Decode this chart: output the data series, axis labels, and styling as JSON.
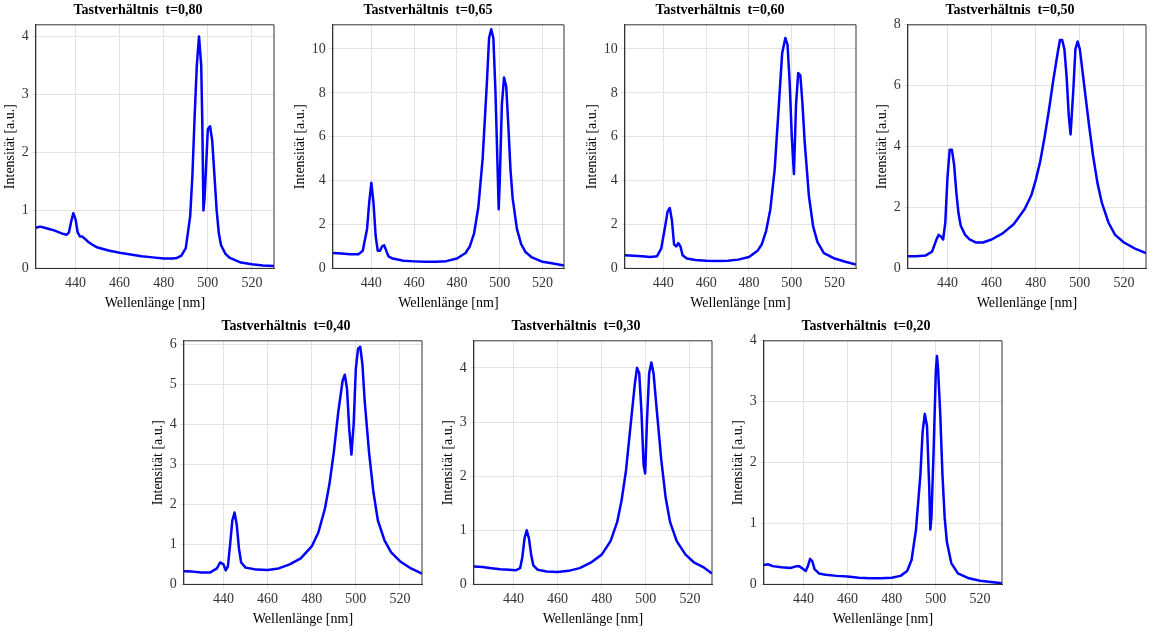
{
  "chart_data": [
    {
      "type": "line",
      "title": "Tastverhältnis  t=0,80",
      "xlabel": "Wellenlänge [nm]",
      "ylabel": "Intensität [a.u.]",
      "xlim": [
        422,
        530
      ],
      "xticks": [
        440,
        460,
        480,
        500,
        520
      ],
      "ylim": [
        0,
        4.2
      ],
      "yticks": [
        0,
        1,
        2,
        3,
        4
      ],
      "grid": true,
      "marker": "none",
      "series": [
        {
          "color": "#0000ff",
          "x": [
            422,
            424,
            426,
            428,
            430,
            432,
            434,
            436,
            437,
            438,
            439,
            440,
            441,
            442,
            443,
            444,
            446,
            448,
            450,
            455,
            460,
            465,
            470,
            475,
            480,
            484,
            486,
            488,
            490,
            492,
            493,
            494,
            495,
            496,
            497,
            497.5,
            498,
            498.5,
            499,
            500,
            501,
            502,
            503,
            504,
            505,
            506,
            508,
            510,
            515,
            520,
            525,
            530
          ],
          "values": [
            0.7,
            0.72,
            0.7,
            0.68,
            0.66,
            0.63,
            0.6,
            0.58,
            0.62,
            0.8,
            0.95,
            0.85,
            0.62,
            0.55,
            0.55,
            0.52,
            0.45,
            0.4,
            0.36,
            0.31,
            0.27,
            0.24,
            0.21,
            0.19,
            0.17,
            0.17,
            0.18,
            0.22,
            0.35,
            0.9,
            1.6,
            2.6,
            3.5,
            4.0,
            3.5,
            2.5,
            1.0,
            1.2,
            1.6,
            2.4,
            2.45,
            2.2,
            1.6,
            1.0,
            0.6,
            0.4,
            0.25,
            0.18,
            0.1,
            0.07,
            0.05,
            0.04
          ]
        }
      ]
    },
    {
      "type": "line",
      "title": "Tastverhältnis  t=0,65",
      "xlabel": "Wellenlänge [nm]",
      "ylabel": "Intensität [a.u.]",
      "xlim": [
        422,
        530
      ],
      "xticks": [
        440,
        460,
        480,
        500,
        520
      ],
      "ylim": [
        0,
        11.1
      ],
      "yticks": [
        0,
        2,
        4,
        6,
        8,
        10
      ],
      "grid": true,
      "marker": "none",
      "series": [
        {
          "color": "#0000ff",
          "x": [
            422,
            426,
            430,
            434,
            436,
            438,
            439,
            440,
            441,
            442,
            443,
            444,
            445,
            446,
            447,
            448,
            450,
            455,
            460,
            465,
            470,
            475,
            480,
            484,
            486,
            488,
            490,
            492,
            494,
            495,
            496,
            497,
            498,
            499,
            499.5,
            500,
            501,
            502,
            503,
            504,
            505,
            506,
            508,
            510,
            512,
            515,
            520,
            525,
            530
          ],
          "values": [
            0.7,
            0.68,
            0.65,
            0.65,
            0.8,
            1.8,
            3.0,
            3.9,
            3.0,
            1.5,
            0.8,
            0.8,
            1.0,
            1.05,
            0.8,
            0.55,
            0.45,
            0.35,
            0.32,
            0.3,
            0.3,
            0.33,
            0.45,
            0.7,
            1.0,
            1.6,
            2.8,
            5.0,
            8.5,
            10.5,
            10.9,
            10.5,
            8.0,
            4.5,
            2.7,
            4.0,
            7.5,
            8.7,
            8.3,
            6.5,
            4.5,
            3.2,
            1.8,
            1.1,
            0.75,
            0.5,
            0.3,
            0.22,
            0.13
          ]
        }
      ]
    },
    {
      "type": "line",
      "title": "Tastverhältnis  t=0,60",
      "xlabel": "Wellenlänge [nm]",
      "ylabel": "Intensität [a.u.]",
      "xlim": [
        422,
        530
      ],
      "xticks": [
        440,
        460,
        480,
        500,
        520
      ],
      "ylim": [
        0,
        11.1
      ],
      "yticks": [
        0,
        2,
        4,
        6,
        8,
        10
      ],
      "grid": true,
      "marker": "none",
      "series": [
        {
          "color": "#0000ff",
          "x": [
            422,
            426,
            430,
            434,
            437,
            439,
            441,
            442,
            443,
            444,
            445,
            446,
            447,
            448,
            449,
            451,
            455,
            460,
            465,
            470,
            475,
            480,
            484,
            486,
            488,
            490,
            492,
            494,
            495.5,
            497,
            498,
            499,
            500,
            501,
            502,
            503,
            504,
            505,
            506,
            508,
            510,
            512,
            515,
            520,
            525,
            530
          ],
          "values": [
            0.6,
            0.58,
            0.55,
            0.52,
            0.55,
            0.9,
            2.0,
            2.6,
            2.75,
            2.2,
            1.1,
            1.0,
            1.15,
            1.0,
            0.6,
            0.45,
            0.38,
            0.35,
            0.34,
            0.35,
            0.4,
            0.52,
            0.8,
            1.1,
            1.7,
            2.7,
            4.5,
            7.5,
            9.8,
            10.5,
            10.2,
            8.5,
            6.0,
            4.3,
            7.5,
            8.9,
            8.8,
            7.5,
            5.8,
            3.3,
            1.9,
            1.2,
            0.7,
            0.45,
            0.3,
            0.18
          ]
        }
      ]
    },
    {
      "type": "line",
      "title": "Tastverhältnis  t=0,50",
      "xlabel": "Wellenlänge [nm]",
      "ylabel": "Intensität [a.u.]",
      "xlim": [
        422,
        530
      ],
      "xticks": [
        440,
        460,
        480,
        500,
        520
      ],
      "ylim": [
        0,
        8
      ],
      "yticks": [
        0,
        2,
        4,
        6,
        8
      ],
      "grid": true,
      "marker": "none",
      "series": [
        {
          "color": "#0000ff",
          "x": [
            422,
            426,
            430,
            433,
            435,
            436,
            437,
            438,
            439,
            440,
            441,
            442,
            443,
            444,
            445,
            446,
            448,
            450,
            453,
            456,
            460,
            465,
            470,
            475,
            478,
            480,
            482,
            484,
            486,
            488,
            490,
            491,
            492,
            493,
            494,
            495,
            495.8,
            497,
            498,
            499,
            500,
            502,
            504,
            506,
            508,
            510,
            513,
            516,
            520,
            525,
            530
          ],
          "values": [
            0.4,
            0.4,
            0.42,
            0.55,
            0.95,
            1.1,
            1.05,
            0.95,
            1.5,
            3.0,
            3.9,
            3.9,
            3.4,
            2.5,
            1.8,
            1.4,
            1.1,
            0.95,
            0.85,
            0.85,
            0.95,
            1.15,
            1.45,
            1.95,
            2.4,
            2.9,
            3.5,
            4.3,
            5.2,
            6.2,
            7.1,
            7.5,
            7.5,
            7.2,
            6.3,
            5.0,
            4.4,
            5.8,
            7.2,
            7.45,
            7.2,
            6.0,
            4.8,
            3.7,
            2.8,
            2.15,
            1.5,
            1.1,
            0.85,
            0.65,
            0.5
          ]
        }
      ]
    },
    {
      "type": "line",
      "title": "Tastverhältnis  t=0,40",
      "xlabel": "Wellenlänge [nm]",
      "ylabel": "Intensität [a.u.]",
      "xlim": [
        422,
        530
      ],
      "xticks": [
        440,
        460,
        480,
        500,
        520
      ],
      "ylim": [
        0,
        6.1
      ],
      "yticks": [
        0,
        1,
        2,
        3,
        4,
        5,
        6
      ],
      "grid": true,
      "marker": "none",
      "series": [
        {
          "color": "#0000ff",
          "x": [
            422,
            426,
            430,
            434,
            437,
            438.5,
            440,
            441,
            442,
            443,
            444,
            445,
            446,
            447,
            448,
            450,
            455,
            460,
            465,
            470,
            475,
            480,
            483,
            486,
            488,
            490,
            492,
            494,
            495,
            496,
            497,
            498,
            499,
            500,
            501,
            502,
            503,
            504,
            506,
            508,
            510,
            513,
            516,
            520,
            525,
            530
          ],
          "values": [
            0.33,
            0.32,
            0.3,
            0.3,
            0.4,
            0.55,
            0.5,
            0.35,
            0.45,
            1.0,
            1.6,
            1.8,
            1.5,
            0.9,
            0.55,
            0.42,
            0.37,
            0.36,
            0.4,
            0.5,
            0.65,
            0.95,
            1.3,
            1.9,
            2.5,
            3.3,
            4.3,
            5.1,
            5.25,
            4.9,
            3.9,
            3.25,
            4.0,
            5.4,
            5.9,
            5.95,
            5.5,
            4.6,
            3.3,
            2.3,
            1.6,
            1.1,
            0.8,
            0.58,
            0.4,
            0.27
          ]
        }
      ]
    },
    {
      "type": "line",
      "title": "Tastverhältnis  t=0,30",
      "xlabel": "Wellenlänge [nm]",
      "ylabel": "Intensität [a.u.]",
      "xlim": [
        422,
        530
      ],
      "xticks": [
        440,
        460,
        480,
        500,
        520
      ],
      "ylim": [
        0,
        4.5
      ],
      "yticks": [
        0,
        1,
        2,
        3,
        4
      ],
      "grid": true,
      "marker": "none",
      "series": [
        {
          "color": "#0000ff",
          "x": [
            422,
            426,
            430,
            434,
            438,
            441,
            443,
            444,
            445,
            446,
            447,
            448,
            449,
            451,
            455,
            460,
            465,
            470,
            475,
            480,
            484,
            487,
            489,
            491,
            493,
            495,
            496,
            497,
            498,
            499,
            499.7,
            500.5,
            501.5,
            502.5,
            503.5,
            505,
            507,
            509,
            511,
            514,
            518,
            522,
            526,
            530
          ],
          "values": [
            0.33,
            0.32,
            0.3,
            0.28,
            0.27,
            0.26,
            0.3,
            0.5,
            0.85,
            1.0,
            0.85,
            0.55,
            0.35,
            0.27,
            0.24,
            0.23,
            0.25,
            0.3,
            0.4,
            0.55,
            0.8,
            1.15,
            1.55,
            2.1,
            2.9,
            3.7,
            4.0,
            3.9,
            3.2,
            2.2,
            2.05,
            3.0,
            3.9,
            4.1,
            3.9,
            3.2,
            2.3,
            1.6,
            1.15,
            0.8,
            0.55,
            0.4,
            0.32,
            0.2
          ]
        }
      ]
    },
    {
      "type": "line",
      "title": "Tastverhältnis  t=0,20",
      "xlabel": "Wellenlänge [nm]",
      "ylabel": "Intensität [a.u.]",
      "xlim": [
        422,
        530
      ],
      "xticks": [
        440,
        460,
        480,
        500,
        520
      ],
      "ylim": [
        0,
        4
      ],
      "yticks": [
        0,
        1,
        2,
        3,
        4
      ],
      "grid": true,
      "marker": "none",
      "series": [
        {
          "color": "#0000ff",
          "x": [
            422,
            424,
            426,
            430,
            434,
            437,
            438,
            440,
            441,
            442,
            443,
            444,
            445,
            447,
            450,
            455,
            460,
            465,
            470,
            475,
            480,
            484,
            487,
            489,
            491,
            493,
            494,
            495,
            496,
            497,
            497.5,
            498,
            499,
            500,
            500.5,
            501,
            502,
            503,
            504,
            505,
            507,
            510,
            515,
            520,
            525,
            530
          ],
          "values": [
            0.32,
            0.33,
            0.3,
            0.28,
            0.27,
            0.3,
            0.3,
            0.25,
            0.22,
            0.3,
            0.42,
            0.38,
            0.25,
            0.18,
            0.16,
            0.14,
            0.13,
            0.11,
            0.1,
            0.1,
            0.11,
            0.14,
            0.22,
            0.4,
            0.9,
            1.8,
            2.5,
            2.8,
            2.6,
            1.6,
            0.9,
            1.1,
            2.2,
            3.5,
            3.75,
            3.55,
            2.8,
            1.8,
            1.1,
            0.7,
            0.35,
            0.18,
            0.1,
            0.06,
            0.04,
            0.02
          ]
        }
      ]
    }
  ]
}
